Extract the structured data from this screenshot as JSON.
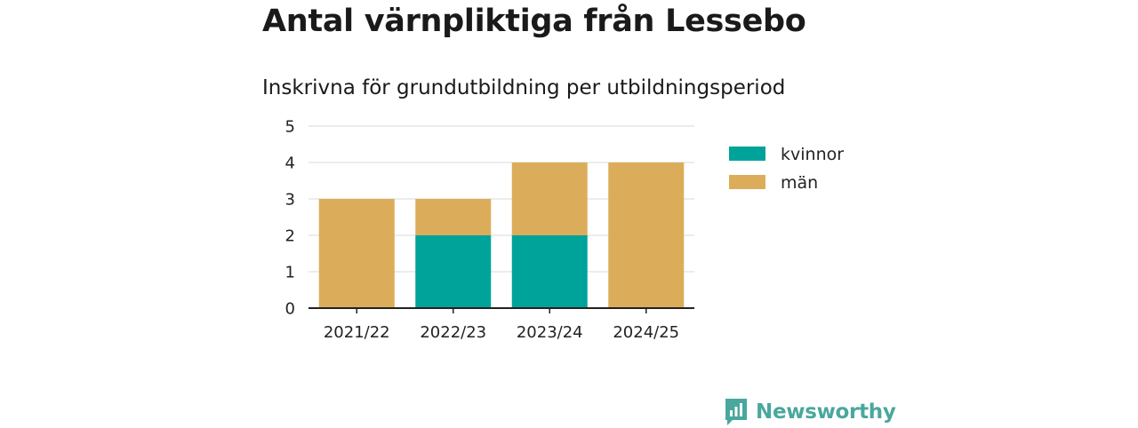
{
  "header": {
    "title": "Antal värnpliktiga från Lessebo",
    "subtitle": "Inskrivna för grundutbildning per utbildningsperiod"
  },
  "chart_data": {
    "type": "bar",
    "stacked": true,
    "categories": [
      "2021/22",
      "2022/23",
      "2023/24",
      "2024/25"
    ],
    "series": [
      {
        "name": "kvinnor",
        "color": "#00a39a",
        "values": [
          0,
          2,
          2,
          0
        ]
      },
      {
        "name": "män",
        "color": "#dbad5a",
        "values": [
          3,
          1,
          2,
          4
        ]
      }
    ],
    "ylim": [
      0,
      5
    ],
    "yticks": [
      0,
      1,
      2,
      3,
      4,
      5
    ],
    "grid": true,
    "legend_position": "right"
  },
  "brand": {
    "name": "Newsworthy",
    "icon": "newsworthy-logo-icon",
    "color": "#4aa79d"
  }
}
